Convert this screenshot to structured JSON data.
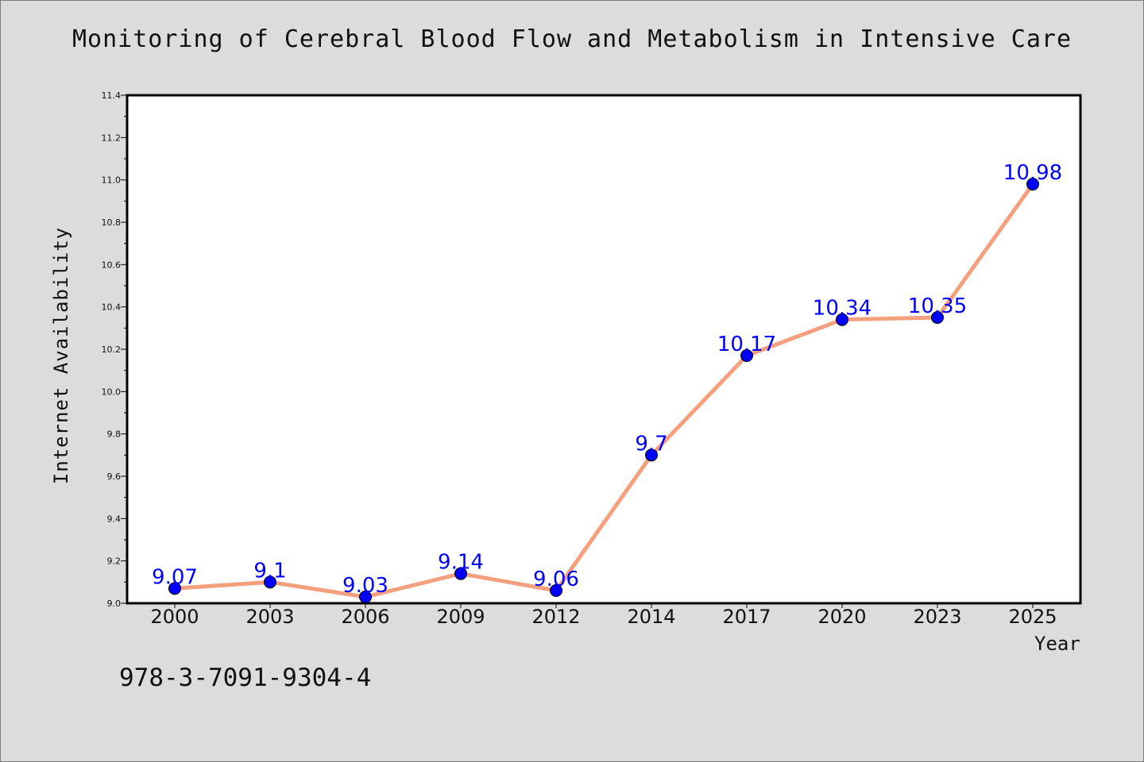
{
  "chart_data": {
    "type": "line",
    "title": "Monitoring of Cerebral Blood Flow and Metabolism in Intensive Care",
    "xlabel": "Year",
    "ylabel": "Internet Availability",
    "categories": [
      "2000",
      "2003",
      "2006",
      "2009",
      "2012",
      "2014",
      "2017",
      "2020",
      "2023",
      "2025"
    ],
    "values": [
      9.07,
      9.1,
      9.03,
      9.14,
      9.06,
      9.7,
      10.17,
      10.34,
      10.35,
      10.98
    ],
    "value_labels": [
      "9.07",
      "9.1",
      "9.03",
      "9.14",
      "9.06",
      "9.7",
      "10.17",
      "10.34",
      "10.35",
      "10.98"
    ],
    "ylim": [
      9.0,
      11.4
    ],
    "yticks": [
      "9.0",
      "9.2",
      "9.4",
      "9.6",
      "9.8",
      "10.0",
      "10.2",
      "10.4",
      "10.6",
      "10.8",
      "11.0",
      "11.2",
      "11.4"
    ],
    "grid": false,
    "legend": "none",
    "colors": {
      "line": "#f4a07e",
      "marker": "#0000ff",
      "label": "#0000ff",
      "background": "#dcdcdc",
      "plot_background": "#ffffff"
    }
  },
  "footer": {
    "isbn": "978-3-7091-9304-4"
  }
}
